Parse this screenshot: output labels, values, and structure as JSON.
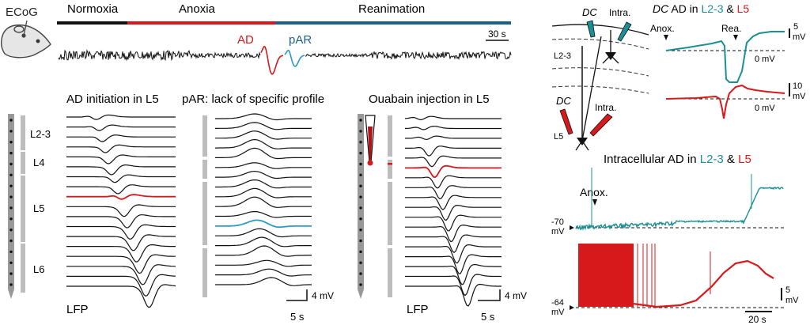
{
  "ecog": {
    "label": "ECoG"
  },
  "phases": [
    {
      "label": "Normoxia",
      "color": "#111111"
    },
    {
      "label": "Anoxia",
      "color": "#d7191c"
    },
    {
      "label": "Reanimation",
      "color": "#1f5f86"
    }
  ],
  "main_trace": {
    "ad_label": "AD",
    "par_label": "pAR",
    "scale_label": "30 s"
  },
  "colors": {
    "black": "#111111",
    "red": "#d7191c",
    "teal": "#1a8f96",
    "gray": "#b3b3b3",
    "blue": "#2b9ac4"
  },
  "panel_ad": {
    "title": "AD initiation in L5",
    "layers": [
      "L2-3",
      "L4",
      "L5",
      "L6"
    ],
    "footer": "LFP"
  },
  "panel_par": {
    "title": "pAR: lack of specific profile",
    "time_scale": "5 s",
    "volt_scale": "4 mV"
  },
  "panel_ouabain": {
    "title": "Ouabain injection in L5",
    "footer": "LFP",
    "time_scale": "5 s",
    "volt_scale": "4 mV"
  },
  "schematic": {
    "dc_top": "DC",
    "intra_top": "Intra.",
    "layer_top": "L2-3",
    "dc_bottom": "DC",
    "intra_bottom": "Intra.",
    "layer_bottom": "L5"
  },
  "dc_panel": {
    "title_prefix": "DC",
    "title_mid": " AD in ",
    "l23": "L2-3",
    "amp": " & ",
    "l5": "L5",
    "anox": "Anox.",
    "rea": "Rea.",
    "zero_top": "0 mV",
    "zero_bottom": "0 mV",
    "scale_top_num": "5",
    "scale_top_unit": "mV",
    "scale_bottom_num": "10",
    "scale_bottom_unit": "mV"
  },
  "intra_panel": {
    "title_prefix": "Intracellular AD in ",
    "l23": "L2-3",
    "amp": " & ",
    "l5": "L5",
    "anox": "Anox.",
    "v1_num": "-70",
    "v1_unit": "mV",
    "v2_num": "-64",
    "v2_unit": "mV",
    "scale_v_num": "5",
    "scale_v_unit": "mV",
    "scale_t": "20 s"
  }
}
